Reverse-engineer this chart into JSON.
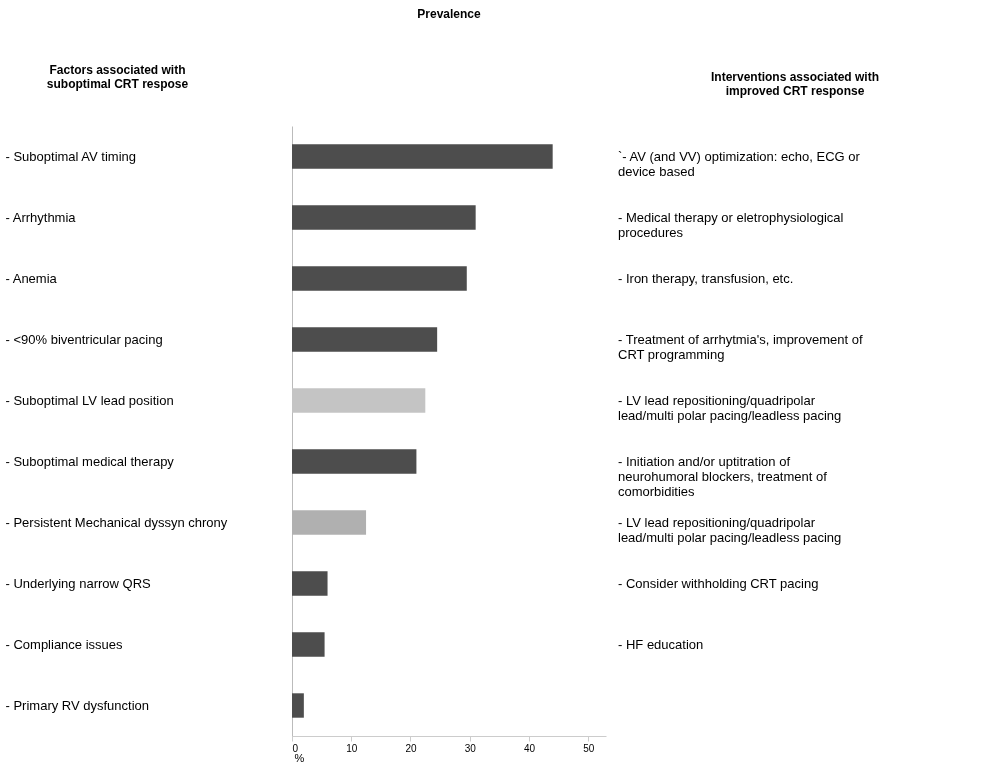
{
  "chart_data": {
    "type": "bar",
    "orientation": "horizontal",
    "title": "Prevalence",
    "ylabel": "Factors associated with suboptimal CRT respose",
    "xlabel": "%",
    "categories": [
      "- Suboptimal AV timing",
      "- Arrhythmia",
      "- Anemia",
      "- <90% biventricular pacing",
      "- Suboptimal LV lead position",
      "- Suboptimal medical therapy",
      "- Persistent Mechanical dyssyn chrony",
      "- Underlying narrow QRS",
      "- Compliance issues",
      "- Primary RV dysfunction"
    ],
    "values": [
      44,
      31,
      29.5,
      24.5,
      22.5,
      21,
      12.5,
      6,
      5.5,
      2
    ],
    "colors": [
      "#4d4d4d",
      "#4d4d4d",
      "#4d4d4d",
      "#4d4d4d",
      "#c4c4c4",
      "#4d4d4d",
      "#b0b0b0",
      "#4d4d4d",
      "#4d4d4d",
      "#4d4d4d"
    ],
    "xlim": [
      0,
      53
    ],
    "xticks": [
      0,
      10,
      20,
      30,
      40,
      50
    ],
    "grid": false,
    "annotations": [
      "Interventions associated with improved CRT response",
      "`- AV (and VV) optimization: echo, ECG or device based",
      "- Medical therapy or eletrophysiological procedures",
      "- Iron therapy, transfusion, etc.",
      "- Treatment of arrhytmia's, improvement of CRT programming",
      "- LV lead repositioning/quadripolar lead/multi polar pacing/leadless pacing",
      "- Initiation and/or uptitration of neurohumoral blockers, treatment of comorbidities",
      "- LV lead repositioning/quadripolar lead/multi polar pacing/leadless pacing",
      "- Consider withholding CRT pacing",
      "- HF education"
    ]
  }
}
